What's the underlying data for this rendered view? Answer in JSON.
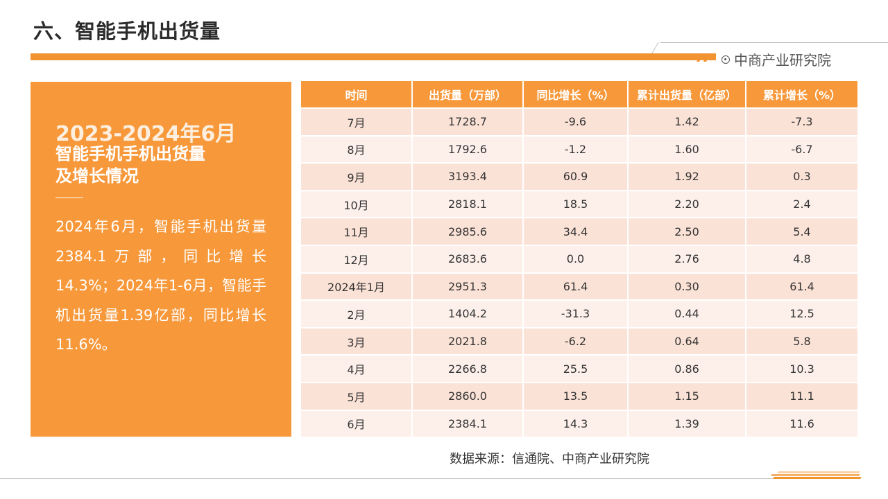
{
  "header": {
    "title": "六、智能手机出货量",
    "brand": "中商产业研究院",
    "accent_color": "#f29331"
  },
  "left_panel": {
    "year": "2023-2024年6月",
    "heading_line1": "智能手机手机出货量",
    "heading_line2": "及增长情况",
    "body": "2024年6月，智能手机出货量2384.1万部，同比增长14.3%；2024年1-6月，智能手机出货量1.39亿部，同比增长11.6%。",
    "background_color": "#f7983a"
  },
  "table": {
    "columns": [
      "时间",
      "出货量（万部）",
      "同比增长（%）",
      "累计出货量（亿部）",
      "累计增长（%）"
    ],
    "rows": [
      [
        "7月",
        "1728.7",
        "-9.6",
        "1.42",
        "-7.3"
      ],
      [
        "8月",
        "1792.6",
        "-1.2",
        "1.60",
        "-6.7"
      ],
      [
        "9月",
        "3193.4",
        "60.9",
        "1.92",
        "0.3"
      ],
      [
        "10月",
        "2818.1",
        "18.5",
        "2.20",
        "2.4"
      ],
      [
        "11月",
        "2985.6",
        "34.4",
        "2.50",
        "5.4"
      ],
      [
        "12月",
        "2683.6",
        "0.0",
        "2.76",
        "4.8"
      ],
      [
        "2024年1月",
        "2951.3",
        "61.4",
        "0.30",
        "61.4"
      ],
      [
        "2月",
        "1404.2",
        "-31.3",
        "0.44",
        "12.5"
      ],
      [
        "3月",
        "2021.8",
        "-6.2",
        "0.64",
        "5.8"
      ],
      [
        "4月",
        "2266.8",
        "25.5",
        "0.86",
        "10.3"
      ],
      [
        "5月",
        "2860.0",
        "13.5",
        "1.15",
        "11.1"
      ],
      [
        "6月",
        "2384.1",
        "14.3",
        "1.39",
        "11.6"
      ]
    ],
    "header_color": "#f7983a",
    "row_color_odd": "#fbe2d6",
    "row_color_even": "#fdf0eb"
  },
  "source": "数据来源：信通院、中商产业研究院"
}
